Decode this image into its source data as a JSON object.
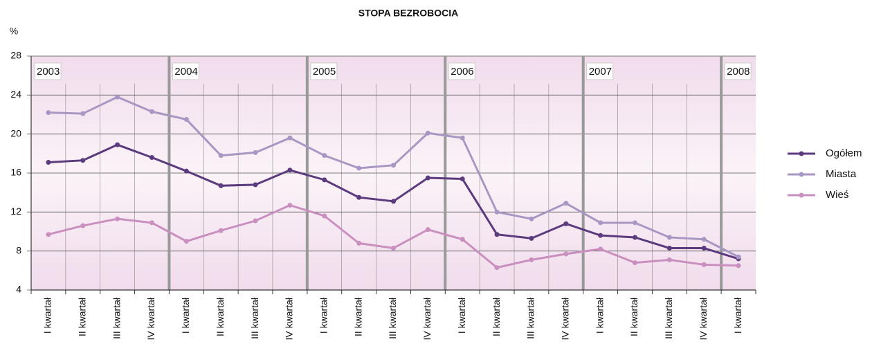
{
  "chart_data": {
    "type": "line",
    "title": "STOPA BEZROBOCIA",
    "y_label": "%",
    "categories": [
      "I kwartał",
      "II kwartał",
      "III kwartał",
      "IV kwartał",
      "I kwartał",
      "II kwartał",
      "III kwartał",
      "IV kwartał",
      "I kwartał",
      "II kwartał",
      "III kwartał",
      "IV kwartał",
      "I kwartał",
      "II kwartał",
      "III kwartał",
      "IV kwartał",
      "I kwartał",
      "II kwartał",
      "III kwartał",
      "IV kwartał",
      "I kwartał"
    ],
    "years": [
      "2003",
      "2004",
      "2005",
      "2006",
      "2007",
      "2008"
    ],
    "series": [
      {
        "name": "Ogółem",
        "color": "#5b3a7e",
        "values": [
          17.1,
          17.3,
          18.9,
          17.6,
          16.2,
          14.7,
          14.8,
          16.3,
          15.3,
          13.5,
          13.1,
          15.5,
          15.4,
          9.7,
          9.3,
          10.8,
          9.6,
          9.4,
          8.3,
          8.3,
          7.2
        ]
      },
      {
        "name": "Miasta",
        "color": "#a897c2",
        "values": [
          22.2,
          22.1,
          23.8,
          22.3,
          21.5,
          17.8,
          18.1,
          19.6,
          17.8,
          16.5,
          16.8,
          20.1,
          19.6,
          12.0,
          11.3,
          12.9,
          10.9,
          10.9,
          9.4,
          9.2,
          7.4
        ]
      },
      {
        "name": "Wieś",
        "color": "#c98fbf",
        "values": [
          9.7,
          10.6,
          11.3,
          10.9,
          9.0,
          10.1,
          11.1,
          12.7,
          11.6,
          8.8,
          8.3,
          10.2,
          9.2,
          6.3,
          7.1,
          7.7,
          8.2,
          6.8,
          7.1,
          6.6,
          6.5
        ]
      }
    ],
    "ylim": [
      4,
      28
    ],
    "yticks": [
      4,
      8,
      12,
      16,
      20,
      24,
      28
    ],
    "grid": true
  }
}
